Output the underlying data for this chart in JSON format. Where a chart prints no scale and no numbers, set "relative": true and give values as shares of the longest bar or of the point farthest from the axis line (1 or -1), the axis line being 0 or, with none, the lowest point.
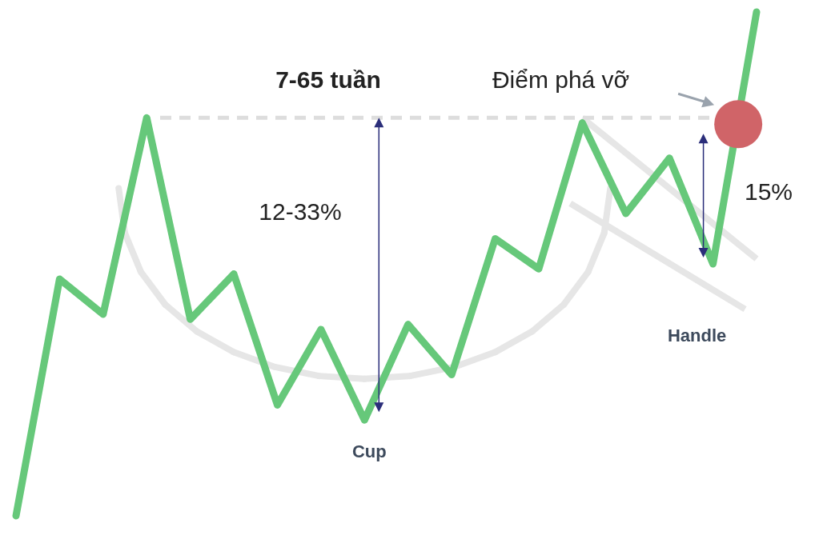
{
  "chart_data": {
    "type": "line",
    "relative": true,
    "categories": [
      null,
      null,
      null,
      null,
      null,
      null,
      null,
      null,
      null,
      null,
      null,
      null,
      null,
      null,
      null,
      null,
      null,
      null
    ],
    "series": [
      {
        "color": "#66c87a",
        "values": [
          0,
          0.47,
          0.4,
          0.79,
          0.39,
          0.48,
          0.22,
          0.37,
          0.19,
          0.38,
          0.28,
          0.55,
          0.49,
          0.78,
          0.6,
          0.71,
          0.5,
          1
        ]
      }
    ],
    "ref_lines": [
      {
        "axis": "y",
        "value": 0.79,
        "color": "#dddddd",
        "line_style": "dashed"
      }
    ],
    "annotations": [
      "7-65 tuần",
      "Điểm phá vỡ",
      "12-33%",
      "15%",
      "Cup",
      "Handle"
    ],
    "grid": false,
    "marker": "none",
    "line_style": "solid"
  }
}
